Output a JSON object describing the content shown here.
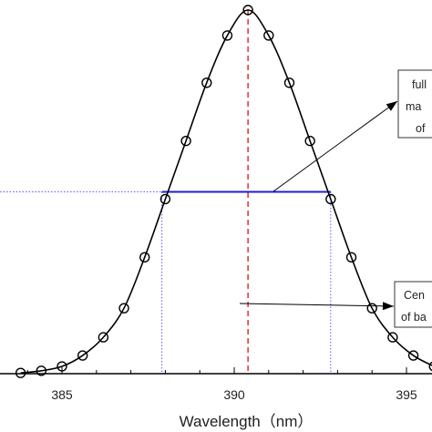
{
  "chart_data": {
    "type": "line",
    "title": "",
    "xlabel": "Wavelength（nm）",
    "ylabel": "",
    "xlim": [
      382.5,
      396.5
    ],
    "x_ticks": [
      "385",
      "390",
      "395"
    ],
    "series": [
      {
        "x": [
          383.8,
          384.4,
          385.0,
          385.6,
          386.2,
          386.8,
          387.4,
          388.0,
          388.6,
          389.2,
          389.8,
          390.4,
          391.0,
          391.6,
          392.2,
          392.8,
          393.4,
          394.0,
          394.6,
          395.2,
          395.8
        ],
        "y": [
          0.002,
          0.008,
          0.02,
          0.05,
          0.1,
          0.18,
          0.32,
          0.48,
          0.64,
          0.8,
          0.93,
          1.0,
          0.93,
          0.8,
          0.64,
          0.48,
          0.32,
          0.18,
          0.1,
          0.05,
          0.02
        ]
      }
    ],
    "fwhm": {
      "x_start": 387.9,
      "x_end": 392.8,
      "y": 0.5
    },
    "center_wavelength": 390.4,
    "annotations": [
      {
        "lines": [
          "full",
          "ma",
          "of"
        ]
      },
      {
        "lines": [
          "Cen",
          "of ba"
        ]
      }
    ]
  }
}
